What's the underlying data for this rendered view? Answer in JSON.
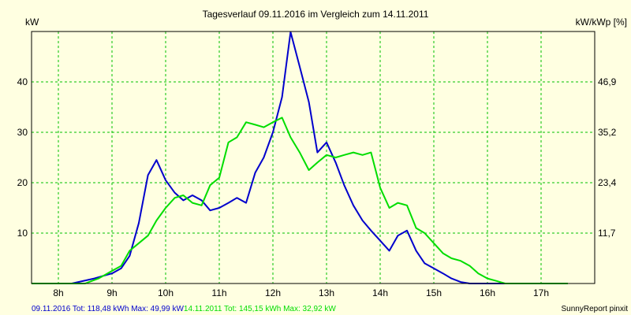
{
  "chart_data": {
    "type": "line",
    "title": "Tagesverlauf 09.11.2016 im Vergleich zum 14.11.2011",
    "ylabel_left": "kW",
    "ylabel_right": "kW/kWp [%]",
    "xlim": [
      7.5,
      18.0
    ],
    "ylim": [
      0,
      50
    ],
    "x_ticks": [
      {
        "value": 8,
        "label": "8h"
      },
      {
        "value": 9,
        "label": "9h"
      },
      {
        "value": 10,
        "label": "10h"
      },
      {
        "value": 11,
        "label": "11h"
      },
      {
        "value": 12,
        "label": "12h"
      },
      {
        "value": 13,
        "label": "13h"
      },
      {
        "value": 14,
        "label": "14h"
      },
      {
        "value": 15,
        "label": "15h"
      },
      {
        "value": 16,
        "label": "16h"
      },
      {
        "value": 17,
        "label": "17h"
      }
    ],
    "y_ticks_left": [
      {
        "value": 10,
        "label": "10"
      },
      {
        "value": 20,
        "label": "20"
      },
      {
        "value": 30,
        "label": "30"
      },
      {
        "value": 40,
        "label": "40"
      }
    ],
    "y_ticks_right": [
      {
        "value": 10,
        "label": "11,7"
      },
      {
        "value": 20,
        "label": "23,4"
      },
      {
        "value": 30,
        "label": "35,2"
      },
      {
        "value": 40,
        "label": "46,9"
      }
    ],
    "grid": true,
    "legend_position": "bottom-left",
    "footer_right": "SunnyReport pinxit",
    "series": [
      {
        "name": "09.11.2016",
        "legend_text": "09.11.2016 Tot: 118,48 kWh Max: 49,99 kW",
        "color": "#0000cc",
        "points": [
          [
            7.5,
            0
          ],
          [
            8.25,
            0
          ],
          [
            8.67,
            1
          ],
          [
            8.83,
            1.5
          ],
          [
            9.0,
            2
          ],
          [
            9.17,
            3
          ],
          [
            9.33,
            5.5
          ],
          [
            9.5,
            12
          ],
          [
            9.67,
            21.5
          ],
          [
            9.83,
            24.5
          ],
          [
            10.0,
            20.5
          ],
          [
            10.17,
            18
          ],
          [
            10.33,
            16.5
          ],
          [
            10.5,
            17.5
          ],
          [
            10.67,
            16.5
          ],
          [
            10.83,
            14.5
          ],
          [
            11.0,
            15
          ],
          [
            11.17,
            16
          ],
          [
            11.33,
            17
          ],
          [
            11.5,
            16
          ],
          [
            11.67,
            22
          ],
          [
            11.83,
            25
          ],
          [
            12.0,
            30
          ],
          [
            12.17,
            37
          ],
          [
            12.33,
            49.9
          ],
          [
            12.5,
            43
          ],
          [
            12.67,
            36
          ],
          [
            12.83,
            26
          ],
          [
            13.0,
            28
          ],
          [
            13.17,
            24
          ],
          [
            13.33,
            19.5
          ],
          [
            13.5,
            15.5
          ],
          [
            13.67,
            12.5
          ],
          [
            13.83,
            10.5
          ],
          [
            14.0,
            8.5
          ],
          [
            14.17,
            6.5
          ],
          [
            14.33,
            9.5
          ],
          [
            14.5,
            10.5
          ],
          [
            14.67,
            6.5
          ],
          [
            14.83,
            4
          ],
          [
            15.0,
            3
          ],
          [
            15.17,
            2
          ],
          [
            15.33,
            1
          ],
          [
            15.5,
            0.3
          ],
          [
            15.67,
            0
          ],
          [
            16.5,
            0
          ]
        ]
      },
      {
        "name": "14.11.2011",
        "legend_text": "14.11.2011 Tot: 145,15 kWh Max: 32,92 kW",
        "color": "#00dd00",
        "points": [
          [
            7.5,
            0
          ],
          [
            8.5,
            0
          ],
          [
            8.75,
            1
          ],
          [
            9.0,
            2.5
          ],
          [
            9.17,
            3.5
          ],
          [
            9.33,
            6.5
          ],
          [
            9.5,
            8
          ],
          [
            9.67,
            9.5
          ],
          [
            9.83,
            12.5
          ],
          [
            10.0,
            15
          ],
          [
            10.17,
            17
          ],
          [
            10.33,
            17.5
          ],
          [
            10.5,
            16
          ],
          [
            10.67,
            15.5
          ],
          [
            10.83,
            19.5
          ],
          [
            11.0,
            21
          ],
          [
            11.17,
            28
          ],
          [
            11.33,
            29
          ],
          [
            11.5,
            32
          ],
          [
            11.67,
            31.5
          ],
          [
            11.83,
            31
          ],
          [
            12.0,
            32
          ],
          [
            12.17,
            32.9
          ],
          [
            12.33,
            29
          ],
          [
            12.5,
            26
          ],
          [
            12.67,
            22.5
          ],
          [
            12.83,
            24
          ],
          [
            13.0,
            25.5
          ],
          [
            13.17,
            25
          ],
          [
            13.33,
            25.5
          ],
          [
            13.5,
            26
          ],
          [
            13.67,
            25.5
          ],
          [
            13.83,
            26
          ],
          [
            14.0,
            19
          ],
          [
            14.17,
            15
          ],
          [
            14.33,
            16
          ],
          [
            14.5,
            15.5
          ],
          [
            14.67,
            11
          ],
          [
            14.83,
            10
          ],
          [
            15.0,
            8
          ],
          [
            15.17,
            6
          ],
          [
            15.33,
            5
          ],
          [
            15.5,
            4.5
          ],
          [
            15.67,
            3.5
          ],
          [
            15.83,
            2
          ],
          [
            16.0,
            1
          ],
          [
            16.17,
            0.5
          ],
          [
            16.33,
            0
          ],
          [
            17.5,
            0
          ]
        ]
      }
    ]
  }
}
